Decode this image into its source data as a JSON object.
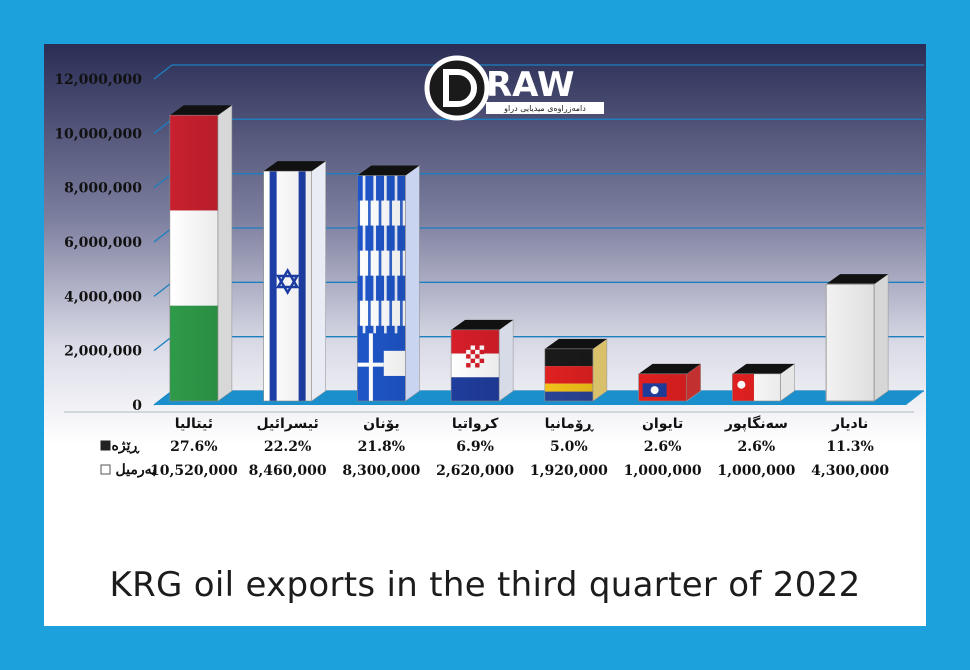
{
  "caption": "KRG oil exports in the third quarter of 2022",
  "logo": {
    "text": "RAW",
    "letter": "D",
    "subtitle": "دامەزراوەی میدیایی دراو"
  },
  "table": {
    "row1_label": "ڕێژە",
    "row2_label": "بەرمیل"
  },
  "chart_data": {
    "type": "bar",
    "ylim": [
      0,
      12000000
    ],
    "yticks": [
      "0",
      "2,000,000",
      "4,000,000",
      "6,000,000",
      "8,000,000",
      "10,000,000",
      "12,000,000"
    ],
    "categories": [
      "ئیتالیا",
      "ئیسرائیل",
      "یۆنان",
      "کرواتیا",
      "ڕۆمانیا",
      "تایوان",
      "سەنگاپور",
      "نادیار"
    ],
    "values": [
      10520000,
      8460000,
      8300000,
      2620000,
      1920000,
      1000000,
      1000000,
      4300000
    ],
    "percent_labels": [
      "27.6%",
      "22.2%",
      "21.8%",
      "6.9%",
      "5.0%",
      "2.6%",
      "2.6%",
      "11.3%"
    ],
    "value_labels": [
      "10,520,000",
      "8,460,000",
      "8,300,000",
      "2,620,000",
      "1,920,000",
      "1,000,000",
      "1,000,000",
      "4,300,000"
    ],
    "bar_styles": [
      "italy",
      "israel",
      "greece",
      "croatia",
      "romania",
      "taiwan",
      "singapore",
      "unknown"
    ]
  }
}
